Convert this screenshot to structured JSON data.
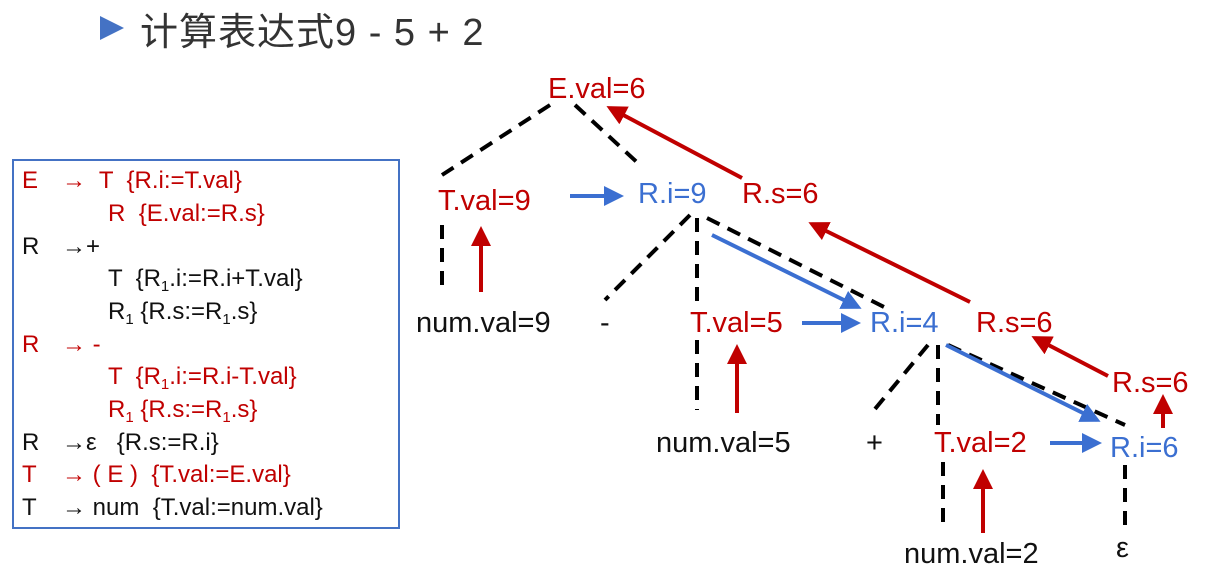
{
  "title": "计算表达式9 - 5 + 2",
  "colors": {
    "red": "#c00000",
    "blue": "#3b6fd1",
    "black": "#111111",
    "accent": "#4472c4"
  },
  "grammar": [
    {
      "lhs": "E",
      "arrow": "→",
      "rhs": "T",
      "action": "{R.i:=T.val}",
      "color": "red"
    },
    {
      "lhs": "",
      "arrow": "",
      "rhs": "R",
      "action": "{E.val:=R.s}",
      "color": "red"
    },
    {
      "lhs": "R",
      "arrow": "→",
      "rhs": "+",
      "action": "",
      "color": "black"
    },
    {
      "lhs": "",
      "arrow": "",
      "rhs": "T",
      "action": "{R1.i:=R.i+T.val}",
      "color": "black"
    },
    {
      "lhs": "",
      "arrow": "",
      "rhs": "R1",
      "action": "{R.s:=R1.s}",
      "color": "black"
    },
    {
      "lhs": "R",
      "arrow": "→",
      "rhs": "-",
      "action": "",
      "color": "red"
    },
    {
      "lhs": "",
      "arrow": "",
      "rhs": "T",
      "action": "{R1.i:=R.i-T.val}",
      "color": "red"
    },
    {
      "lhs": "",
      "arrow": "",
      "rhs": "R1",
      "action": "{R.s:=R1.s}",
      "color": "red"
    },
    {
      "lhs": "R",
      "arrow": "→",
      "rhs": "ε",
      "action": "{R.s:=R.i}",
      "color": "black"
    },
    {
      "lhs": "T",
      "arrow": "→",
      "rhs": "( E )",
      "action": "{T.val:=E.val}",
      "color": "red"
    },
    {
      "lhs": "T",
      "arrow": "→",
      "rhs": "num",
      "action": "{T.val:=num.val}",
      "color": "black"
    }
  ],
  "tree": {
    "E": "E.val=6",
    "T1": "T.val=9",
    "R1i": "R.i=9",
    "R1s": "R.s=6",
    "num1": "num.val=9",
    "minus": "-",
    "T2": "T.val=5",
    "R2i": "R.i=4",
    "R2s": "R.s=6",
    "num2": "num.val=5",
    "plus": "+",
    "T3": "T.val=2",
    "R3i": "R.i=6",
    "R3s": "R.s=6",
    "num3": "num.val=2",
    "eps": "ε"
  }
}
